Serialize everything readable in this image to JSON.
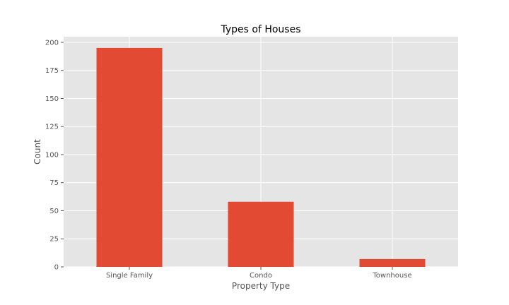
{
  "chart_data": {
    "type": "bar",
    "title": "Types of Houses",
    "xlabel": "Property Type",
    "ylabel": "Count",
    "categories": [
      "Single Family",
      "Condo",
      "Townhouse"
    ],
    "values": [
      195,
      58,
      7
    ],
    "ylim": [
      0,
      205
    ],
    "yticks": [
      0,
      25,
      50,
      75,
      100,
      125,
      150,
      175,
      200
    ],
    "grid": true,
    "colors": {
      "bar": "#e24a33",
      "plot_background": "#e5e5e5",
      "grid": "#ffffff"
    }
  }
}
